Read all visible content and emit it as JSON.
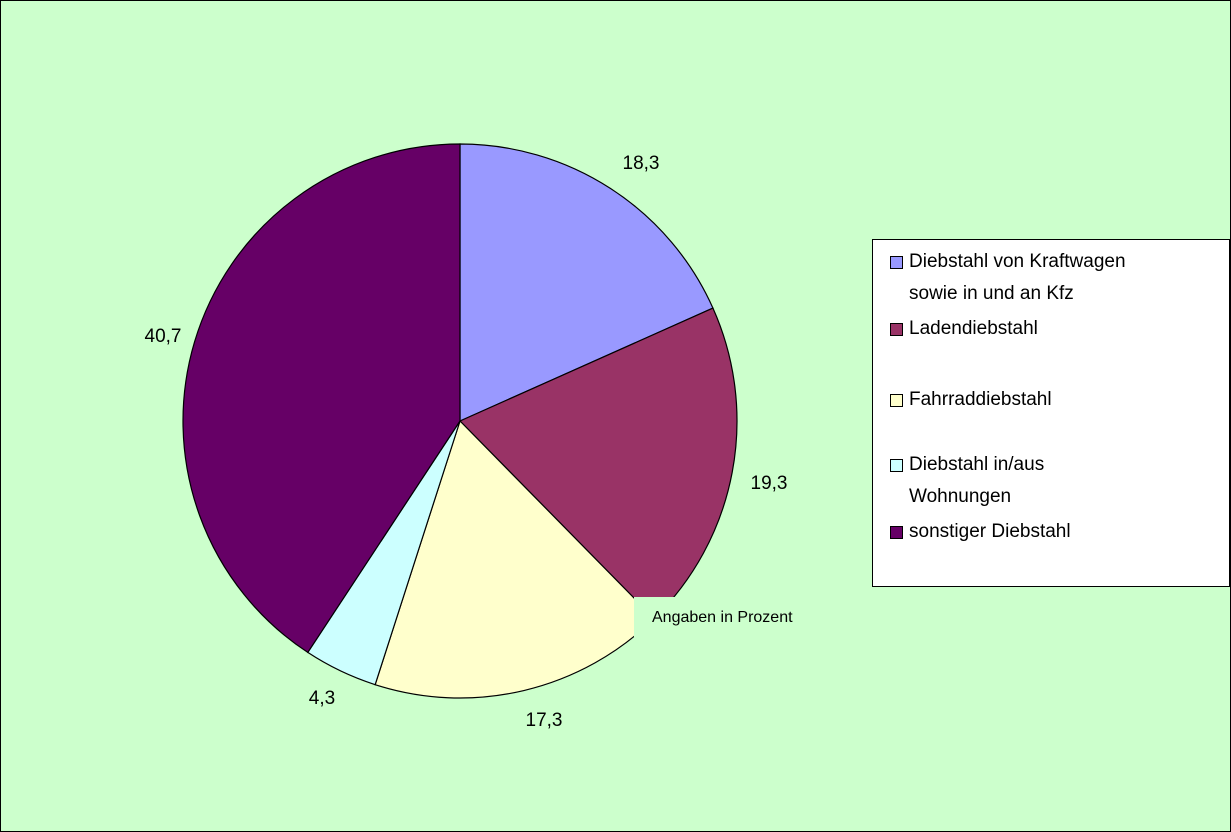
{
  "chart_data": {
    "type": "pie",
    "title": "",
    "slices": [
      {
        "label": "Diebstahl von Kraftwagen sowie in und an Kfz",
        "value": 18.3,
        "value_label": "18,3",
        "color": "#9999ff"
      },
      {
        "label": "Ladendiebstahl",
        "value": 19.3,
        "value_label": "19,3",
        "color": "#993366"
      },
      {
        "label": "Fahrraddiebstahl",
        "value": 17.3,
        "value_label": "17,3",
        "color": "#ffffcc"
      },
      {
        "label": "Diebstahl in/aus Wohnungen",
        "value": 4.3,
        "value_label": "4,3",
        "color": "#ccffff"
      },
      {
        "label": "sonstiger Diebstahl",
        "value": 40.7,
        "value_label": "40,7",
        "color": "#660066"
      }
    ],
    "legend": {
      "position": "right",
      "items": [
        {
          "lines": [
            "Diebstahl von Kraftwagen",
            "sowie in und an Kfz"
          ],
          "color": "#9999ff"
        },
        {
          "lines": [
            "Ladendiebstahl"
          ],
          "color": "#993366"
        },
        {
          "lines": [
            "Fahrraddiebstahl"
          ],
          "color": "#ffffcc"
        },
        {
          "lines": [
            "Diebstahl in/aus",
            "Wohnungen"
          ],
          "color": "#ccffff"
        },
        {
          "lines": [
            "sonstiger Diebstahl"
          ],
          "color": "#660066"
        }
      ]
    },
    "annotation": "Angaben in Prozent",
    "background_color": "#ccffcc"
  }
}
